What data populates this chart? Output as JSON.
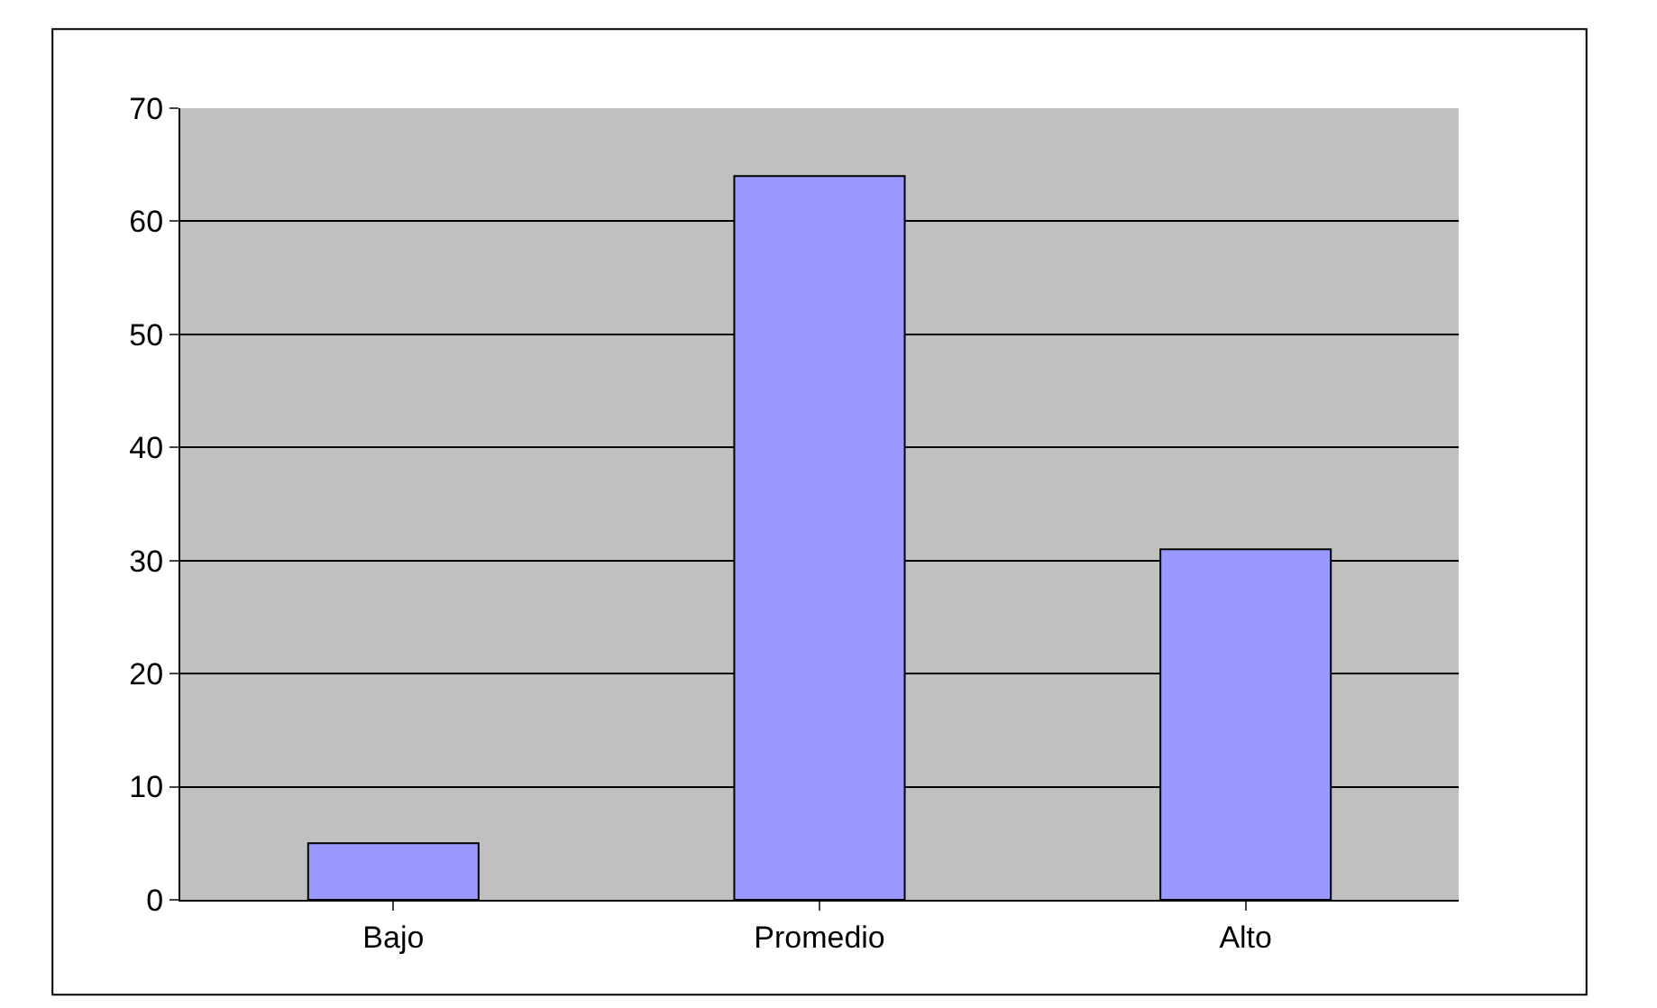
{
  "chart_data": {
    "type": "bar",
    "categories": [
      "Bajo",
      "Promedio",
      "Alto"
    ],
    "values": [
      5,
      64,
      31
    ],
    "color": "#9999ff",
    "ylim": [
      0,
      70
    ],
    "yticks": [
      0,
      10,
      20,
      30,
      40,
      50,
      60,
      70
    ],
    "grid": "y",
    "legend": false
  }
}
